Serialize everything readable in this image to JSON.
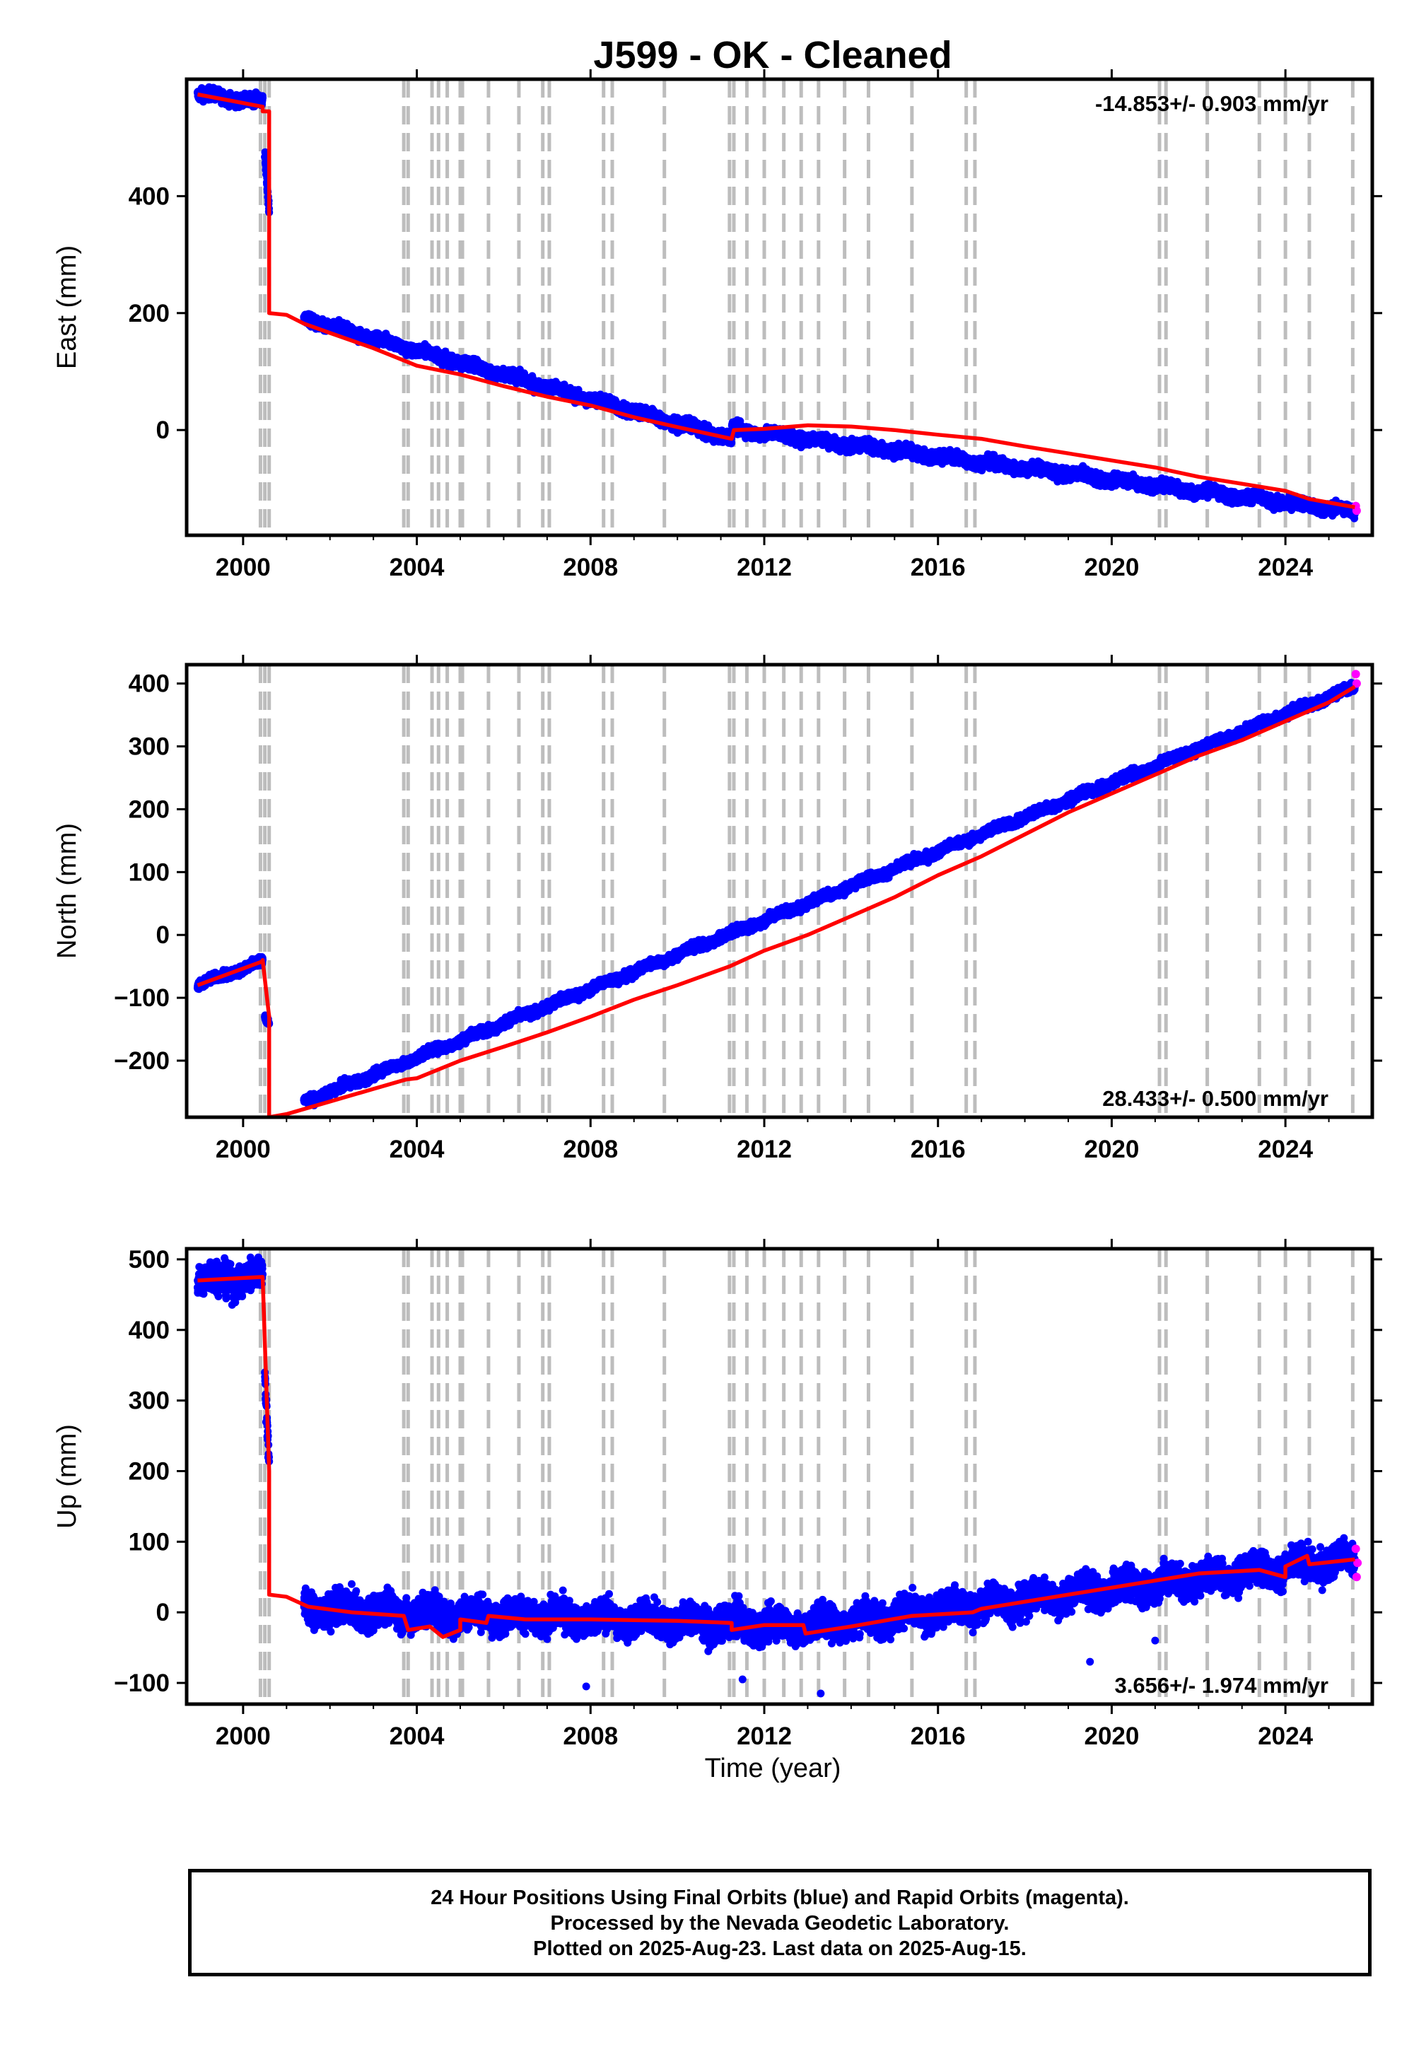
{
  "chart_data": {
    "title": "J599  - OK - Cleaned",
    "xlabel": "Time (year)",
    "xlim": [
      1998.7,
      2026.0
    ],
    "x_ticks": [
      2000,
      2004,
      2008,
      2012,
      2016,
      2020,
      2024
    ],
    "x_tick_labels": [
      "2000",
      "2004",
      "2008",
      "2012",
      "2016",
      "2020",
      "2024"
    ],
    "grid": false,
    "event_lines_years": [
      2000.4,
      2000.5,
      2000.6,
      2003.7,
      2003.8,
      2004.35,
      2004.5,
      2004.7,
      2005.0,
      2005.05,
      2005.65,
      2006.35,
      2006.9,
      2007.05,
      2008.3,
      2008.5,
      2009.7,
      2011.2,
      2011.3,
      2011.6,
      2012.0,
      2012.45,
      2012.85,
      2013.25,
      2013.85,
      2014.4,
      2015.4,
      2016.65,
      2016.85,
      2021.1,
      2021.25,
      2022.2,
      2023.4,
      2024.0,
      2024.55,
      2025.55
    ],
    "panels": [
      {
        "type": "scatter",
        "ylabel": "East (mm)",
        "ylim": [
          -180,
          600
        ],
        "y_ticks": [
          0,
          200,
          400
        ],
        "y_tick_labels": [
          "0",
          "200",
          "400"
        ],
        "rate_label": "-14.853+/- 0.903 mm/yr",
        "rate_position": "top-right",
        "scatter_noise_mm": 7,
        "series": [
          {
            "name": "Final Orbits",
            "color": "#0000ff",
            "segments": [
              {
                "x": [
                  1998.95,
                  2000.45
                ],
                "y": [
                  575,
                  560
                ]
              },
              {
                "x": [
                  2000.5,
                  2000.6
                ],
                "y": [
                  470,
                  375
                ]
              },
              {
                "x": [
                  2001.4,
                  2011.25
                ],
                "y": [
                  190,
                  -15
                ]
              },
              {
                "x": [
                  2011.25,
                  2025.6
                ],
                "y": [
                  2,
                  -140
                ]
              }
            ]
          },
          {
            "name": "Rapid Orbits",
            "color": "#ff00ff",
            "points": [
              [
                2025.62,
                -130
              ],
              [
                2025.64,
                -138
              ]
            ]
          }
        ],
        "model": {
          "color": "#ff0000",
          "points": [
            [
              1998.95,
              574
            ],
            [
              2000.45,
              553
            ],
            [
              2000.45,
              545
            ],
            [
              2000.6,
              545
            ],
            [
              2000.6,
              200
            ],
            [
              2001.0,
              197
            ],
            [
              2001.4,
              182
            ],
            [
              2002.0,
              166
            ],
            [
              2003.0,
              140
            ],
            [
              2004.0,
              110
            ],
            [
              2005.0,
              95
            ],
            [
              2006.0,
              75
            ],
            [
              2007.0,
              57
            ],
            [
              2008.0,
              42
            ],
            [
              2009.0,
              22
            ],
            [
              2010.0,
              5
            ],
            [
              2011.25,
              -15
            ],
            [
              2011.3,
              0
            ],
            [
              2012.0,
              2
            ],
            [
              2013.0,
              8
            ],
            [
              2014.0,
              6
            ],
            [
              2015.0,
              0
            ],
            [
              2016.0,
              -8
            ],
            [
              2017.0,
              -15
            ],
            [
              2018.0,
              -28
            ],
            [
              2019.0,
              -40
            ],
            [
              2020.0,
              -52
            ],
            [
              2021.0,
              -64
            ],
            [
              2022.0,
              -80
            ],
            [
              2023.0,
              -92
            ],
            [
              2024.0,
              -104
            ],
            [
              2024.55,
              -118
            ],
            [
              2025.6,
              -132
            ]
          ]
        }
      },
      {
        "type": "scatter",
        "ylabel": "North (mm)",
        "ylim": [
          -290,
          430
        ],
        "y_ticks": [
          -200,
          -100,
          0,
          100,
          200,
          300,
          400
        ],
        "y_tick_labels": [
          "−200",
          "−100",
          "0",
          "100",
          "200",
          "300",
          "400"
        ],
        "rate_label": "28.433+/- 0.500 mm/yr",
        "rate_position": "bottom-right",
        "scatter_noise_mm": 5,
        "series": [
          {
            "name": "Final Orbits",
            "color": "#0000ff",
            "segments": [
              {
                "x": [
                  1998.95,
                  2000.45
                ],
                "y": [
                  -80,
                  -42
                ]
              },
              {
                "x": [
                  2000.5,
                  2000.6
                ],
                "y": [
                  -130,
                  -140
                ]
              },
              {
                "x": [
                  2001.4,
                  2025.6
                ],
                "y": [
                  -266,
                  395
                ]
              }
            ]
          },
          {
            "name": "Rapid Orbits",
            "color": "#ff00ff",
            "points": [
              [
                2025.62,
                415
              ],
              [
                2025.64,
                400
              ]
            ]
          }
        ],
        "model": {
          "color": "#ff0000",
          "points": [
            [
              1998.95,
              -80
            ],
            [
              2000.45,
              -42
            ],
            [
              2000.45,
              -40
            ],
            [
              2000.6,
              -130
            ],
            [
              2000.6,
              -290
            ],
            [
              2001.0,
              -285
            ],
            [
              2002.0,
              -265
            ],
            [
              2003.0,
              -245
            ],
            [
              2003.75,
              -230
            ],
            [
              2004.0,
              -228
            ],
            [
              2005.0,
              -200
            ],
            [
              2006.0,
              -178
            ],
            [
              2007.0,
              -155
            ],
            [
              2008.0,
              -130
            ],
            [
              2009.0,
              -103
            ],
            [
              2010.0,
              -80
            ],
            [
              2011.2,
              -50
            ],
            [
              2012.0,
              -25
            ],
            [
              2013.0,
              0
            ],
            [
              2014.0,
              30
            ],
            [
              2015.0,
              60
            ],
            [
              2016.0,
              95
            ],
            [
              2017.0,
              125
            ],
            [
              2018.0,
              160
            ],
            [
              2019.0,
              195
            ],
            [
              2020.0,
              225
            ],
            [
              2021.0,
              255
            ],
            [
              2022.0,
              285
            ],
            [
              2023.0,
              310
            ],
            [
              2024.0,
              340
            ],
            [
              2025.0,
              370
            ],
            [
              2025.6,
              395
            ]
          ]
        }
      },
      {
        "type": "scatter",
        "ylabel": "Up (mm)",
        "ylim": [
          -130,
          515
        ],
        "y_ticks": [
          -100,
          0,
          100,
          200,
          300,
          400,
          500
        ],
        "y_tick_labels": [
          "−100",
          "0",
          "100",
          "200",
          "300",
          "400",
          "500"
        ],
        "rate_label": "3.656+/- 1.974 mm/yr",
        "rate_position": "bottom-right",
        "scatter_noise_mm": 16,
        "series": [
          {
            "name": "Final Orbits",
            "color": "#0000ff",
            "segments": [
              {
                "x": [
                  1998.95,
                  2000.45
                ],
                "y": [
                  470,
                  475
                ]
              },
              {
                "x": [
                  2000.5,
                  2000.6
                ],
                "y": [
                  330,
                  215
                ]
              },
              {
                "x": [
                  2001.4,
                  2013.0
                ],
                "y": [
                  5,
                  -20
                ]
              },
              {
                "x": [
                  2013.0,
                  2025.6
                ],
                "y": [
                  -20,
                  75
                ]
              }
            ]
          },
          {
            "name": "Rapid Orbits",
            "color": "#ff00ff",
            "points": [
              [
                2025.62,
                90
              ],
              [
                2025.64,
                50
              ],
              [
                2025.66,
                70
              ]
            ]
          }
        ],
        "outliers": [
          [
            2007.9,
            -105
          ],
          [
            2013.3,
            -115
          ],
          [
            2011.5,
            -95
          ],
          [
            2019.5,
            -70
          ],
          [
            2002.5,
            40
          ],
          [
            2021.0,
            -40
          ]
        ],
        "model": {
          "color": "#ff0000",
          "points": [
            [
              1998.95,
              470
            ],
            [
              2000.45,
              475
            ],
            [
              2000.45,
              475
            ],
            [
              2000.6,
              200
            ],
            [
              2000.6,
              25
            ],
            [
              2001.0,
              22
            ],
            [
              2001.5,
              8
            ],
            [
              2002.5,
              0
            ],
            [
              2003.7,
              -5
            ],
            [
              2003.8,
              -25
            ],
            [
              2004.3,
              -20
            ],
            [
              2004.6,
              -35
            ],
            [
              2005.0,
              -25
            ],
            [
              2005.0,
              -10
            ],
            [
              2005.6,
              -15
            ],
            [
              2005.65,
              -5
            ],
            [
              2006.5,
              -10
            ],
            [
              2008.0,
              -10
            ],
            [
              2010.0,
              -12
            ],
            [
              2011.25,
              -15
            ],
            [
              2011.25,
              -25
            ],
            [
              2012.0,
              -18
            ],
            [
              2012.9,
              -18
            ],
            [
              2012.95,
              -30
            ],
            [
              2014.0,
              -20
            ],
            [
              2015.4,
              -5
            ],
            [
              2016.8,
              0
            ],
            [
              2017.0,
              5
            ],
            [
              2018.0,
              15
            ],
            [
              2019.0,
              25
            ],
            [
              2020.0,
              35
            ],
            [
              2021.0,
              45
            ],
            [
              2022.0,
              55
            ],
            [
              2023.4,
              60
            ],
            [
              2024.0,
              50
            ],
            [
              2024.0,
              65
            ],
            [
              2024.5,
              80
            ],
            [
              2024.55,
              68
            ],
            [
              2025.6,
              75
            ]
          ]
        }
      }
    ]
  },
  "caption": {
    "line1": "24 Hour Positions Using Final Orbits (blue) and Rapid Orbits (magenta).",
    "line2": "Processed by the Nevada Geodetic Laboratory.",
    "line3": "Plotted on 2025-Aug-23. Last data on 2025-Aug-15."
  }
}
